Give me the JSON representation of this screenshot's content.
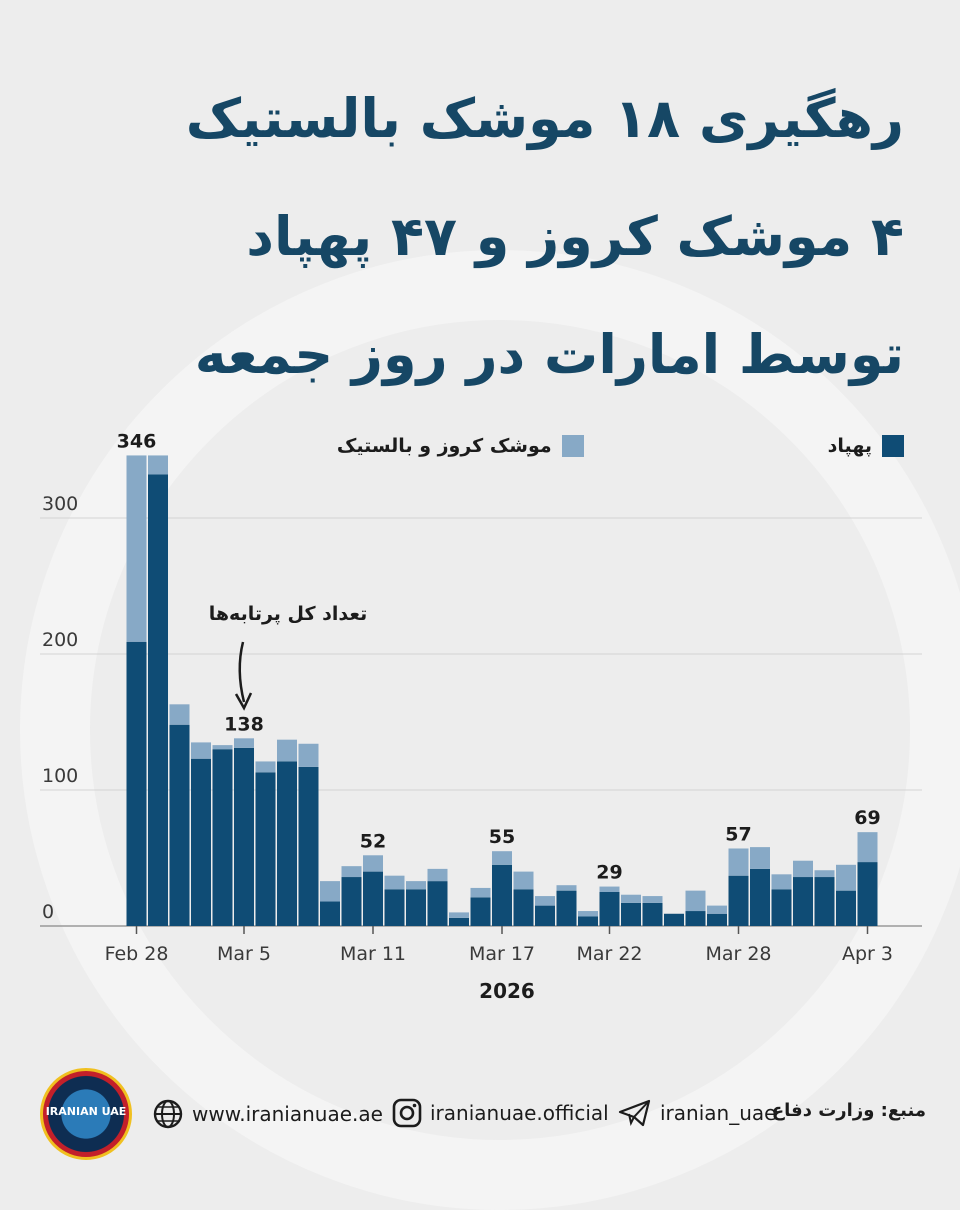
{
  "title_lines": [
    "رهگیری ۱۸ موشک بالستیک",
    "۴ موشک کروز و ۴۷ پهپاد",
    "توسط امارات در روز جمعه"
  ],
  "legend": {
    "drones": "پهپاد",
    "missiles": "موشک کروز و بالستیک"
  },
  "colors": {
    "drones": "#0f4c75",
    "missiles": "#87a9c6",
    "title": "#164765",
    "grid": "#d3d3d3"
  },
  "annotation": {
    "text": "تعداد کل پرتابه‌ها"
  },
  "footer": {
    "logo_text": "IRANIAN UAE",
    "website": "www.iranianuae.ae",
    "instagram": "iranianuae.official",
    "telegram": "iranian_uae",
    "source": "منبع: وزارت دفاع"
  },
  "chart_data": {
    "type": "bar",
    "stacked": true,
    "x_tick_labels": [
      "Feb 28",
      "Mar 5",
      "Mar 11",
      "Mar 17",
      "Mar 22",
      "Mar 28",
      "Apr 3"
    ],
    "x_tick_indices": [
      0,
      5,
      11,
      17,
      22,
      28,
      34
    ],
    "xlabel": "2026",
    "ylabel": "",
    "y_ticks": [
      0,
      100,
      200,
      300
    ],
    "ylim": [
      0,
      346
    ],
    "grid": true,
    "legend_position": "top",
    "series": [
      {
        "name": "پهپاد",
        "values": [
          209,
          332,
          148,
          123,
          130,
          131,
          113,
          121,
          117,
          18,
          36,
          40,
          27,
          27,
          33,
          6,
          21,
          45,
          27,
          15,
          26,
          7,
          25,
          17,
          17,
          9,
          11,
          9,
          37,
          42,
          27,
          36,
          36,
          26,
          47
        ]
      },
      {
        "name": "موشک کروز و بالستیک",
        "values": [
          137,
          14,
          15,
          12,
          3,
          7,
          8,
          16,
          17,
          15,
          8,
          12,
          10,
          6,
          9,
          4,
          7,
          10,
          13,
          7,
          4,
          4,
          4,
          6,
          5,
          0,
          15,
          6,
          20,
          16,
          11,
          12,
          5,
          19,
          22
        ]
      }
    ],
    "data_labels": [
      {
        "index": 0,
        "text": "346"
      },
      {
        "index": 5,
        "text": "138"
      },
      {
        "index": 11,
        "text": "52"
      },
      {
        "index": 17,
        "text": "55"
      },
      {
        "index": 22,
        "text": "29"
      },
      {
        "index": 28,
        "text": "57"
      },
      {
        "index": 34,
        "text": "69"
      }
    ]
  }
}
